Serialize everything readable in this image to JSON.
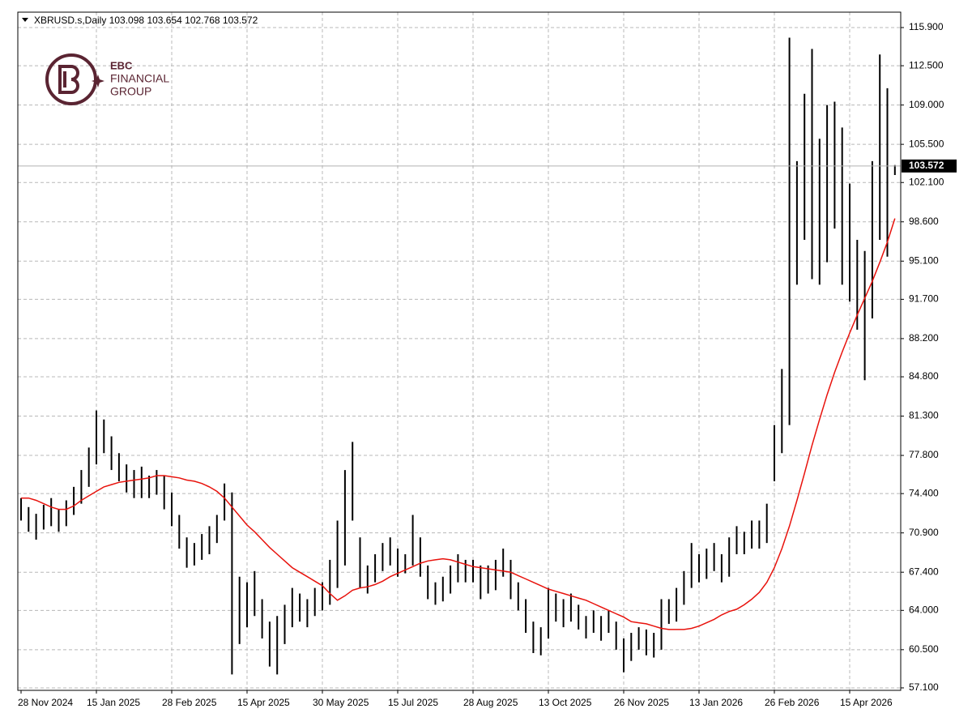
{
  "chart_data": {
    "type": "ohlc",
    "symbol": "XBRUSD.s,Daily",
    "last_ohlc": [
      103.098,
      103.654,
      102.768,
      103.572
    ],
    "logo": {
      "line1": "EBC",
      "line2": "FINANCIAL",
      "line3": "GROUP"
    },
    "categories": [
      "28 Nov 2024",
      null,
      null,
      null,
      null,
      null,
      null,
      null,
      null,
      null,
      "15 Jan 2025",
      null,
      null,
      null,
      null,
      null,
      null,
      null,
      null,
      null,
      "28 Feb 2025",
      null,
      null,
      null,
      null,
      null,
      null,
      null,
      null,
      null,
      "15 Apr 2025",
      null,
      null,
      null,
      null,
      null,
      null,
      null,
      null,
      null,
      "30 May 2025",
      null,
      null,
      null,
      null,
      null,
      null,
      null,
      null,
      null,
      "15 Jul 2025",
      null,
      null,
      null,
      null,
      null,
      null,
      null,
      null,
      null,
      "28 Aug 2025",
      null,
      null,
      null,
      null,
      null,
      null,
      null,
      null,
      null,
      "13 Oct 2025",
      null,
      null,
      null,
      null,
      null,
      null,
      null,
      null,
      null,
      "26 Nov 2025",
      null,
      null,
      null,
      null,
      null,
      null,
      null,
      null,
      null,
      "13 Jan 2026",
      null,
      null,
      null,
      null,
      null,
      null,
      null,
      null,
      null,
      "26 Feb 2026",
      null,
      null,
      null,
      null,
      null,
      null,
      null,
      null,
      null,
      "15 Apr 2026",
      null,
      null,
      null,
      null,
      null,
      null
    ],
    "high": [
      74.0,
      73.2,
      72.6,
      73.4,
      74.0,
      73.0,
      73.8,
      75.0,
      76.5,
      78.5,
      81.8,
      81.0,
      79.5,
      78.0,
      77.0,
      76.5,
      76.8,
      76.0,
      76.5,
      76.0,
      74.5,
      72.5,
      70.5,
      70.0,
      70.8,
      71.5,
      72.5,
      75.3,
      74.5,
      67.0,
      66.5,
      67.5,
      65.0,
      63.0,
      63.5,
      64.5,
      66.0,
      65.5,
      65.0,
      66.0,
      66.5,
      68.5,
      72.0,
      76.5,
      79.0,
      70.5,
      68.0,
      69.0,
      70.0,
      70.5,
      69.5,
      69.0,
      72.5,
      70.5,
      68.0,
      66.5,
      67.0,
      68.0,
      69.0,
      68.5,
      68.5,
      68.0,
      68.0,
      68.5,
      69.5,
      68.5,
      66.5,
      65.0,
      63.0,
      62.5,
      66.0,
      65.5,
      65.0,
      65.5,
      64.5,
      63.5,
      64.0,
      63.5,
      64.0,
      63.0,
      61.5,
      62.0,
      62.5,
      62.3,
      62.0,
      65.0,
      65.0,
      66.0,
      67.5,
      70.0,
      69.0,
      69.5,
      70.0,
      69.0,
      70.5,
      71.5,
      71.0,
      72.0,
      72.0,
      73.5,
      80.5,
      85.5,
      115.0,
      104.0,
      110.0,
      114.0,
      106.0,
      109.0,
      109.3,
      107.0,
      102.0,
      97.0,
      96.0,
      104.0,
      113.5,
      110.5,
      103.654
    ],
    "low": [
      72.0,
      71.0,
      70.3,
      71.2,
      71.5,
      71.0,
      71.5,
      72.5,
      73.5,
      75.0,
      77.0,
      78.0,
      76.5,
      75.5,
      74.5,
      74.0,
      74.0,
      74.0,
      74.3,
      73.0,
      71.5,
      69.5,
      67.8,
      68.0,
      68.5,
      69.0,
      70.0,
      72.0,
      58.3,
      61.0,
      62.5,
      63.5,
      61.5,
      59.0,
      58.3,
      61.0,
      62.5,
      63.0,
      62.5,
      63.5,
      64.0,
      64.5,
      66.0,
      68.0,
      72.0,
      66.0,
      65.5,
      66.5,
      67.5,
      68.0,
      67.0,
      67.3,
      68.0,
      67.0,
      65.0,
      64.5,
      64.8,
      65.5,
      66.5,
      66.5,
      66.5,
      65.0,
      65.5,
      65.8,
      67.0,
      65.0,
      64.0,
      62.0,
      60.2,
      60.0,
      61.5,
      63.0,
      62.5,
      63.0,
      62.3,
      61.5,
      62.0,
      61.3,
      62.0,
      60.5,
      58.5,
      59.5,
      60.5,
      60.0,
      59.8,
      60.5,
      62.8,
      63.0,
      64.5,
      66.0,
      66.5,
      66.8,
      67.5,
      66.5,
      67.0,
      69.0,
      69.0,
      69.5,
      69.5,
      70.0,
      75.5,
      78.0,
      80.5,
      93.0,
      97.0,
      93.5,
      93.0,
      95.0,
      98.0,
      93.0,
      91.5,
      89.0,
      84.5,
      90.0,
      97.0,
      95.5,
      102.768
    ],
    "color": "#000000",
    "ma": {
      "color": "#e8120c",
      "values": [
        74.0,
        74.0,
        73.8,
        73.5,
        73.2,
        73.0,
        73.0,
        73.3,
        73.8,
        74.2,
        74.6,
        75.0,
        75.2,
        75.4,
        75.5,
        75.6,
        75.7,
        75.8,
        76.0,
        76.0,
        75.9,
        75.8,
        75.6,
        75.5,
        75.3,
        75.0,
        74.6,
        74.0,
        73.2,
        72.4,
        71.6,
        71.0,
        70.3,
        69.6,
        69.0,
        68.4,
        67.8,
        67.4,
        67.0,
        66.6,
        66.2,
        65.5,
        64.9,
        65.3,
        65.8,
        66.0,
        66.1,
        66.3,
        66.6,
        67.0,
        67.3,
        67.6,
        67.9,
        68.2,
        68.4,
        68.5,
        68.6,
        68.5,
        68.3,
        68.1,
        67.9,
        67.8,
        67.7,
        67.6,
        67.5,
        67.4,
        67.1,
        66.8,
        66.5,
        66.2,
        65.9,
        65.7,
        65.5,
        65.3,
        65.1,
        64.9,
        64.6,
        64.3,
        64.0,
        63.7,
        63.4,
        63.0,
        62.9,
        62.8,
        62.6,
        62.4,
        62.3,
        62.3,
        62.3,
        62.4,
        62.6,
        62.9,
        63.2,
        63.6,
        63.9,
        64.1,
        64.5,
        65.0,
        65.6,
        66.5,
        67.8,
        69.5,
        71.5,
        73.8,
        76.2,
        78.7,
        81.0,
        83.2,
        85.2,
        87.0,
        88.7,
        90.3,
        91.8,
        93.3,
        95.0,
        96.8,
        98.9
      ]
    },
    "ylim": [
      56.88,
      117.27
    ],
    "yticks": [
      {
        "value": 115.9,
        "label": "115.900"
      },
      {
        "value": 112.5,
        "label": "112.500"
      },
      {
        "value": 109.0,
        "label": "109.000"
      },
      {
        "value": 105.5,
        "label": "105.500"
      },
      {
        "value": 102.1,
        "label": "102.100"
      },
      {
        "value": 98.6,
        "label": "98.600"
      },
      {
        "value": 95.1,
        "label": "95.100"
      },
      {
        "value": 91.7,
        "label": "91.700"
      },
      {
        "value": 88.2,
        "label": "88.200"
      },
      {
        "value": 84.8,
        "label": "84.800"
      },
      {
        "value": 81.3,
        "label": "81.300"
      },
      {
        "value": 77.8,
        "label": "77.800"
      },
      {
        "value": 74.4,
        "label": "74.400"
      },
      {
        "value": 70.9,
        "label": "70.900"
      },
      {
        "value": 67.4,
        "label": "67.400"
      },
      {
        "value": 64.0,
        "label": "64.000"
      },
      {
        "value": 60.5,
        "label": "60.500"
      },
      {
        "value": 57.1,
        "label": "57.100"
      }
    ],
    "grid": true
  }
}
